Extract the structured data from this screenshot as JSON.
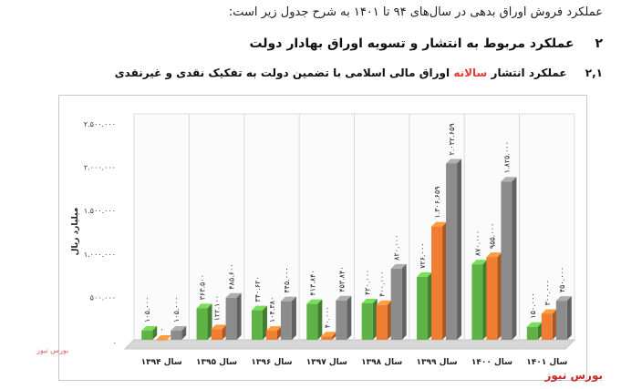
{
  "intro": "عملکرد فروش اوراق بدهی در سال‌های ۹۴ تا ۱۴۰۱ به شرح جدول زیر است:",
  "section": {
    "number": "۲",
    "title": "عملکرد مربوط به انتشار و تسویه اوراق بهادار دولت"
  },
  "subsection": {
    "number": "۲,۱",
    "title_before": "عملکرد انتشار",
    "title_highlight": "سالانه",
    "title_after": "اوراق مالی اسلامی با تضمین دولت به تفکیک نقدی و غیرنقدی"
  },
  "brand": "بورس نیوز",
  "stamp": "بورس نیوز",
  "chart_data": {
    "type": "bar",
    "ylabel": "میلیارد ریال",
    "ylim": [
      0,
      2500000
    ],
    "yticks": [
      0,
      500000,
      1000000,
      1500000,
      2000000,
      2500000
    ],
    "ytick_labels": [
      ".",
      "۵۰۰.۰۰۰",
      "۱.۰۰۰.۰۰۰",
      "۱.۵۰۰.۰۰۰",
      "۲.۰۰۰.۰۰۰",
      "۲.۵۰۰.۰۰۰"
    ],
    "grid": false,
    "categories": [
      "سال ۱۳۹۴",
      "سال ۱۳۹۵",
      "سال ۱۳۹۶",
      "سال ۱۳۹۷",
      "سال ۱۳۹۸",
      "سال ۱۳۹۹",
      "سال ۱۴۰۰",
      "سال ۱۴۰۱"
    ],
    "series": [
      {
        "color": "#5fb246",
        "values": [
          105000,
          363500,
          340620,
          413840,
          420000,
          726000,
          870000,
          150000
        ],
        "labels": [
          "۱۰۵.۰۰۰",
          "۳۶۳.۵۰۰",
          "۳۴۰.۶۲۰",
          "۴۱۳.۸۴۰",
          "۴۲۰.۰۰۰",
          "۷۲۶.۰۰۰",
          "۸۷۰.۰۰۰",
          "۱۵۰.۰۰۰"
        ]
      },
      {
        "color": "#f07d32",
        "values": [
          0,
          122100,
          104380,
          40000,
          400000,
          1306659,
          955000,
          300000
        ],
        "labels": [
          "۰",
          "۱۲۲.۱۰۰",
          "۱۰۴.۳۸۰",
          "۴۰.۰۰۰",
          "۴۰۰.۰۰۰",
          "۱.۳۰۶.۶۵۹",
          "۹۵۵.۰۰۰",
          "۳۰۰.۰۰۰"
        ]
      },
      {
        "color": "#8c8c8c",
        "values": [
          105000,
          485600,
          445000,
          453840,
          820000,
          2032659,
          1825000,
          450000
        ],
        "labels": [
          "۱۰۵.۰۰۰",
          "۴۸۵.۶۰۰",
          "۴۴۵.۰۰۰",
          "۴۵۳.۸۴۰",
          "۸۲۰.۰۰۰",
          "۲.۰۳۲.۶۵۹",
          "۱.۸۲۵.۰۰۰",
          "۴۵۰.۰۰۰"
        ]
      }
    ]
  }
}
